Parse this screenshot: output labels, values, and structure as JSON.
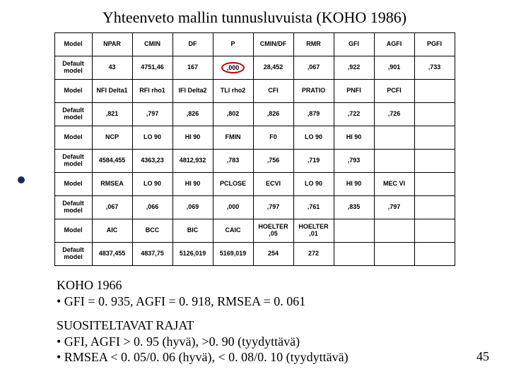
{
  "title": "Yhteenveto mallin tunnusluvuista (KOHO 1986)",
  "table": {
    "rows": [
      [
        "Model",
        "NPAR",
        "CMIN",
        "DF",
        "P",
        "CMIN/DF",
        "RMR",
        "GFI",
        "AGFI",
        "PGFI"
      ],
      [
        "Default model",
        "43",
        "4751,46",
        "167",
        ",000",
        "28,452",
        ",067",
        ",922",
        ",901",
        ",733"
      ],
      [
        "Model",
        "NFI Delta1",
        "RFI rho1",
        "IFI Delta2",
        "TLI rho2",
        "CFI",
        "PRATIO",
        "PNFI",
        "PCFI",
        ""
      ],
      [
        "Default model",
        ",821",
        ",797",
        ",826",
        ",802",
        ",826",
        ",879",
        ",722",
        ",726",
        ""
      ],
      [
        "Model",
        "NCP",
        "LO 90",
        "HI 90",
        "FMIN",
        "F0",
        "LO 90",
        "HI 90",
        "",
        ""
      ],
      [
        "Default model",
        "4584,455",
        "4363,23",
        "4812,932",
        ",783",
        ",756",
        ",719",
        ",793",
        "",
        ""
      ],
      [
        "Model",
        "RMSEA",
        "LO 90",
        "HI 90",
        "PCLOSE",
        "ECVI",
        "LO 90",
        "HI 90",
        "MEC VI",
        ""
      ],
      [
        "Default model",
        ",067",
        ",066",
        ",069",
        ",000",
        ",797",
        ",761",
        ",835",
        ",797",
        ""
      ],
      [
        "Model",
        "AIC",
        "BCC",
        "BIC",
        "CAIC",
        "HOELTER ,05",
        "HOELTER ,01",
        "",
        "",
        ""
      ],
      [
        "Default model",
        "4837,455",
        "4837,75",
        "5126,019",
        "5169,019",
        "254",
        "272",
        "",
        "",
        ""
      ]
    ]
  },
  "circled": {
    "row": 1,
    "col": 4
  },
  "notes": {
    "block1_title": "KOHO 1966",
    "block1_l1": "• GFI = 0. 935, AGFI = 0. 918, RMSEA = 0. 061",
    "block2_title": "SUOSITELTAVAT RAJAT",
    "block2_l1": "• GFI, AGFI  > 0. 95 (hyvä), >0. 90 (tyydyttävä)",
    "block2_l2": "• RMSEA < 0. 05/0. 06 (hyvä), < 0. 08/0. 10 (tyydyttävä)"
  },
  "pagenum": "45"
}
